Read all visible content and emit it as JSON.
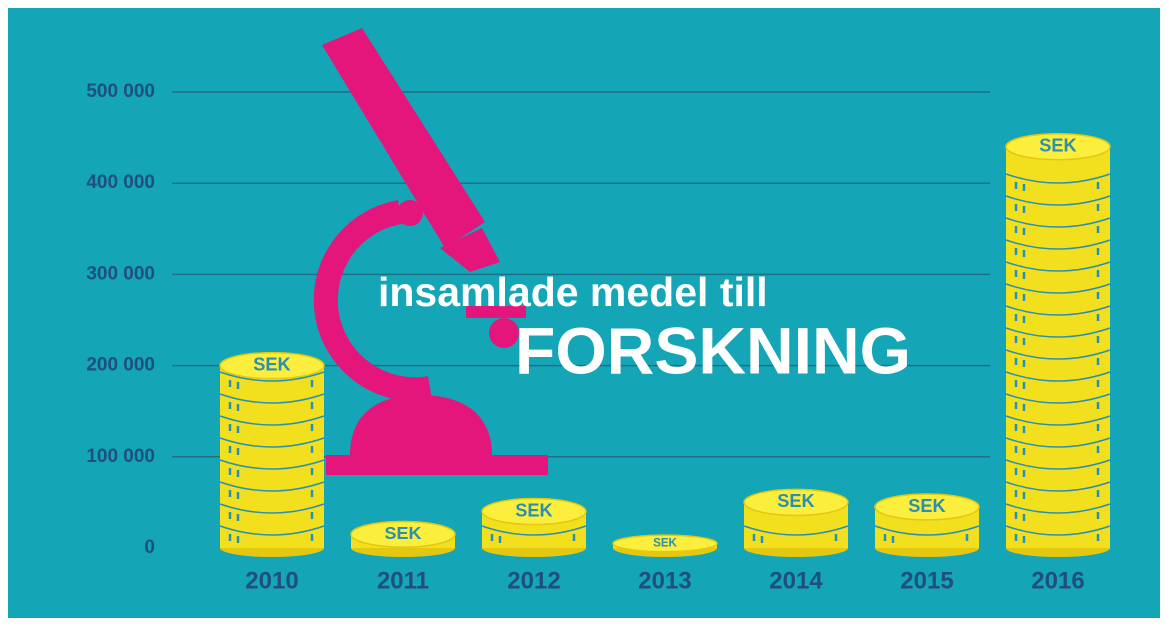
{
  "chart_data": {
    "type": "coin-bar",
    "title": "insamlade medel till",
    "subtitle": "FORSKNING",
    "coin_label": "SEK",
    "categories": [
      "2010",
      "2011",
      "2012",
      "2013",
      "2014",
      "2015",
      "2016"
    ],
    "values": [
      200000,
      15000,
      40000,
      5000,
      50000,
      45000,
      440000
    ],
    "color": "#f2e01e",
    "ylim": [
      0,
      500000
    ],
    "yticks": [
      0,
      {
        "value": 100000,
        "label": "100 000"
      },
      {
        "value": 200000,
        "label": "200 000"
      },
      {
        "value": 300000,
        "label": "300 000"
      },
      {
        "value": 400000,
        "label": "400 000"
      },
      {
        "value": 500000,
        "label": "500 000"
      }
    ],
    "grid": true
  }
}
